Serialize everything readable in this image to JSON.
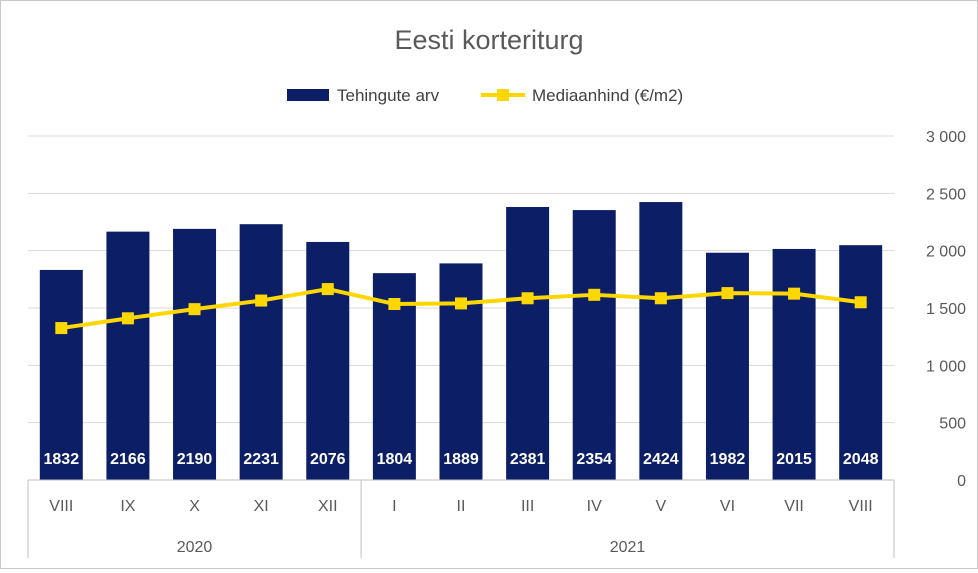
{
  "chart_data": {
    "type": "bar",
    "title": "Eesti korteriturg",
    "categories": [
      "VIII",
      "IX",
      "X",
      "XI",
      "XII",
      "I",
      "II",
      "III",
      "IV",
      "V",
      "VI",
      "VII",
      "VIII"
    ],
    "groups": [
      {
        "label": "2020",
        "count": 5
      },
      {
        "label": "2021",
        "count": 8
      }
    ],
    "series": [
      {
        "name": "Tehingute arv",
        "type": "bar",
        "color": "#0c1f66",
        "values": [
          1832,
          2166,
          2190,
          2231,
          2076,
          1804,
          1889,
          2381,
          2354,
          2424,
          1982,
          2015,
          2048
        ],
        "data_labels": [
          "1832",
          "2166",
          "2190",
          "2231",
          "2076",
          "1804",
          "1889",
          "2381",
          "2354",
          "2424",
          "1982",
          "2015",
          "2048"
        ]
      },
      {
        "name": "Mediaanhind (€/m2)",
        "type": "line",
        "marker": "square",
        "color": "#ffd700",
        "values": [
          1325,
          1410,
          1490,
          1565,
          1665,
          1535,
          1540,
          1585,
          1615,
          1585,
          1630,
          1625,
          1550
        ]
      }
    ],
    "yaxis": {
      "side": "right",
      "ylim": [
        0,
        3000
      ],
      "ticks": [
        0,
        500,
        1000,
        1500,
        2000,
        2500,
        3000
      ],
      "tick_labels": [
        "0",
        "500",
        "1 000",
        "1 500",
        "2 000",
        "2 500",
        "3 000"
      ]
    },
    "grid": true,
    "legend": "top"
  }
}
